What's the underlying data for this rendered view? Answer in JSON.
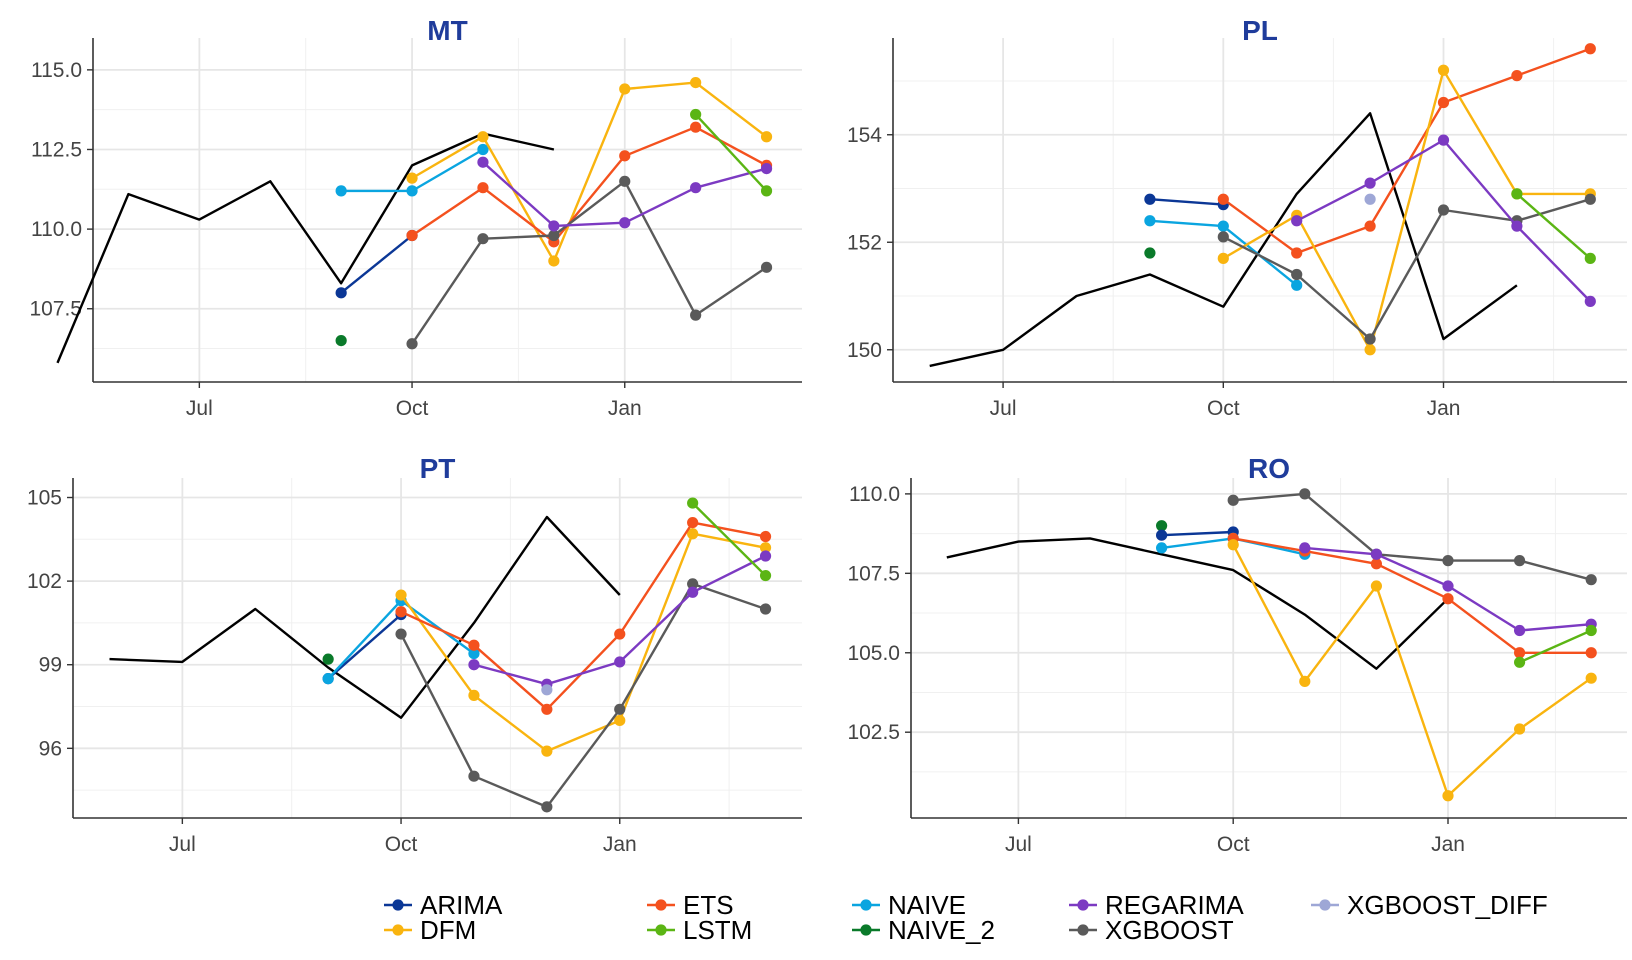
{
  "colors": {
    "actual": "#000000",
    "ARIMA": "#0b3796",
    "ETS": "#f4511e",
    "NAIVE": "#0aa5e0",
    "REGARIMA": "#7c3ac2",
    "XGBOOST_DIFF": "#9ea7d6",
    "DFM": "#f9b40f",
    "LSTM": "#5bb514",
    "NAIVE_2": "#0a7a2a",
    "XGBOOST": "#5a5a5a",
    "title": "#1f3c9b",
    "grid": "#e6e6e6"
  },
  "chart_data": [
    {
      "type": "line",
      "title": "MT",
      "x_ticks": [
        {
          "label": "Jul",
          "month": 1
        },
        {
          "label": "Oct",
          "month": 4
        },
        {
          "label": "Jan",
          "month": 7
        }
      ],
      "xlim": [
        -0.5,
        9.5
      ],
      "ylim": [
        105.2,
        116.0
      ],
      "y_ticks": [
        115.0,
        112.5,
        110.0,
        107.5
      ],
      "y_tick_labels": [
        "115.0",
        "112.5",
        "110.0",
        "107.5"
      ],
      "actual": [
        [
          -1,
          105.8
        ],
        [
          0,
          111.1
        ],
        [
          1,
          110.3
        ],
        [
          2,
          111.5
        ],
        [
          3,
          108.3
        ],
        [
          4,
          112.0
        ],
        [
          5,
          113.0
        ],
        [
          6,
          112.5
        ]
      ],
      "series": [
        {
          "name": "ARIMA",
          "values": [
            [
              3,
              108.0
            ],
            [
              4,
              109.8
            ]
          ]
        },
        {
          "name": "NAIVE_2",
          "values": [
            [
              3,
              106.5
            ]
          ]
        },
        {
          "name": "NAIVE",
          "values": [
            [
              3,
              111.2
            ],
            [
              4,
              111.2
            ],
            [
              5,
              112.5
            ]
          ]
        },
        {
          "name": "DFM",
          "values": [
            [
              4,
              111.6
            ],
            [
              5,
              112.9
            ],
            [
              6,
              109.0
            ],
            [
              7,
              114.4
            ],
            [
              8,
              114.6
            ],
            [
              9,
              112.9
            ]
          ]
        },
        {
          "name": "ETS",
          "values": [
            [
              4,
              109.8
            ],
            [
              5,
              111.3
            ],
            [
              6,
              109.6
            ],
            [
              7,
              112.3
            ],
            [
              8,
              113.2
            ],
            [
              9,
              112.0
            ]
          ]
        },
        {
          "name": "XGBOOST",
          "values": [
            [
              4,
              106.4
            ],
            [
              5,
              109.7
            ],
            [
              6,
              109.8
            ],
            [
              7,
              111.5
            ],
            [
              8,
              107.3
            ],
            [
              9,
              108.8
            ]
          ]
        },
        {
          "name": "REGARIMA",
          "values": [
            [
              5,
              112.1
            ],
            [
              6,
              110.1
            ],
            [
              7,
              110.2
            ],
            [
              8,
              111.3
            ],
            [
              9,
              111.9
            ]
          ]
        },
        {
          "name": "LSTM",
          "values": [
            [
              8,
              113.6
            ],
            [
              9,
              111.2
            ]
          ]
        }
      ]
    },
    {
      "type": "line",
      "title": "PL",
      "x_ticks": [
        {
          "label": "Jul",
          "month": 1
        },
        {
          "label": "Oct",
          "month": 4
        },
        {
          "label": "Jan",
          "month": 7
        }
      ],
      "xlim": [
        -0.5,
        9.5
      ],
      "ylim": [
        149.4,
        155.8
      ],
      "y_ticks": [
        154,
        152,
        150
      ],
      "y_tick_labels": [
        "154",
        "152",
        "150"
      ],
      "actual": [
        [
          0,
          149.7
        ],
        [
          1,
          150.0
        ],
        [
          2,
          151.0
        ],
        [
          3,
          151.4
        ],
        [
          4,
          150.8
        ],
        [
          5,
          152.9
        ],
        [
          6,
          154.4
        ],
        [
          7,
          150.2
        ],
        [
          8,
          151.2
        ]
      ],
      "series": [
        {
          "name": "ARIMA",
          "values": [
            [
              3,
              152.8
            ],
            [
              4,
              152.7
            ]
          ]
        },
        {
          "name": "NAIVE_2",
          "values": [
            [
              3,
              151.8
            ]
          ]
        },
        {
          "name": "NAIVE",
          "values": [
            [
              3,
              152.4
            ],
            [
              4,
              152.3
            ],
            [
              5,
              151.2
            ]
          ]
        },
        {
          "name": "ETS",
          "values": [
            [
              4,
              152.8
            ],
            [
              5,
              151.8
            ],
            [
              6,
              152.3
            ],
            [
              7,
              154.6
            ],
            [
              8,
              155.1
            ],
            [
              9,
              155.6
            ]
          ]
        },
        {
          "name": "DFM",
          "values": [
            [
              4,
              151.7
            ],
            [
              5,
              152.5
            ],
            [
              6,
              150.0
            ],
            [
              7,
              155.2
            ],
            [
              8,
              152.9
            ],
            [
              9,
              152.9
            ]
          ]
        },
        {
          "name": "XGBOOST",
          "values": [
            [
              4,
              152.1
            ],
            [
              5,
              151.4
            ],
            [
              6,
              150.2
            ],
            [
              7,
              152.6
            ],
            [
              8,
              152.4
            ],
            [
              9,
              152.8
            ]
          ]
        },
        {
          "name": "REGARIMA",
          "values": [
            [
              5,
              152.4
            ],
            [
              6,
              153.1
            ],
            [
              7,
              153.9
            ],
            [
              8,
              152.3
            ],
            [
              9,
              150.9
            ]
          ]
        },
        {
          "name": "XGBOOST_DIFF",
          "values": [
            [
              6,
              152.8
            ]
          ]
        },
        {
          "name": "LSTM",
          "values": [
            [
              8,
              152.9
            ],
            [
              9,
              151.7
            ]
          ]
        }
      ]
    },
    {
      "type": "line",
      "title": "PT",
      "x_ticks": [
        {
          "label": "Jul",
          "month": 1
        },
        {
          "label": "Oct",
          "month": 4
        },
        {
          "label": "Jan",
          "month": 7
        }
      ],
      "xlim": [
        -0.5,
        9.5
      ],
      "ylim": [
        93.5,
        105.7
      ],
      "y_ticks": [
        105,
        102,
        99,
        96
      ],
      "y_tick_labels": [
        "105",
        "102",
        "99",
        "96"
      ],
      "actual": [
        [
          0,
          99.2
        ],
        [
          1,
          99.1
        ],
        [
          2,
          101.0
        ],
        [
          3,
          98.9
        ],
        [
          4,
          97.1
        ],
        [
          5,
          100.5
        ],
        [
          6,
          104.3
        ],
        [
          7,
          101.5
        ]
      ],
      "series": [
        {
          "name": "NAIVE_2",
          "values": [
            [
              3,
              99.2
            ]
          ]
        },
        {
          "name": "ARIMA",
          "values": [
            [
              3,
              98.5
            ],
            [
              4,
              100.8
            ]
          ]
        },
        {
          "name": "NAIVE",
          "values": [
            [
              3,
              98.5
            ],
            [
              4,
              101.3
            ],
            [
              5,
              99.4
            ]
          ]
        },
        {
          "name": "DFM",
          "values": [
            [
              4,
              101.5
            ],
            [
              5,
              97.9
            ],
            [
              6,
              95.9
            ],
            [
              7,
              97.0
            ],
            [
              8,
              103.7
            ],
            [
              9,
              103.2
            ]
          ]
        },
        {
          "name": "ETS",
          "values": [
            [
              4,
              100.9
            ],
            [
              5,
              99.7
            ],
            [
              6,
              97.4
            ],
            [
              7,
              100.1
            ],
            [
              8,
              104.1
            ],
            [
              9,
              103.6
            ]
          ]
        },
        {
          "name": "XGBOOST",
          "values": [
            [
              4,
              100.1
            ],
            [
              5,
              95.0
            ],
            [
              6,
              93.9
            ],
            [
              7,
              97.4
            ],
            [
              8,
              101.9
            ],
            [
              9,
              101.0
            ]
          ]
        },
        {
          "name": "REGARIMA",
          "values": [
            [
              5,
              99.0
            ],
            [
              6,
              98.3
            ],
            [
              7,
              99.1
            ],
            [
              8,
              101.6
            ],
            [
              9,
              102.9
            ]
          ]
        },
        {
          "name": "XGBOOST_DIFF",
          "values": [
            [
              6,
              98.1
            ]
          ]
        },
        {
          "name": "LSTM",
          "values": [
            [
              8,
              104.8
            ],
            [
              9,
              102.2
            ]
          ]
        }
      ]
    },
    {
      "type": "line",
      "title": "RO",
      "x_ticks": [
        {
          "label": "Jul",
          "month": 1
        },
        {
          "label": "Oct",
          "month": 4
        },
        {
          "label": "Jan",
          "month": 7
        }
      ],
      "xlim": [
        -0.5,
        9.5
      ],
      "ylim": [
        99.8,
        110.5
      ],
      "y_ticks": [
        110.0,
        107.5,
        105.0,
        102.5
      ],
      "y_tick_labels": [
        "110.0",
        "107.5",
        "105.0",
        "102.5"
      ],
      "actual": [
        [
          0,
          108.0
        ],
        [
          1,
          108.5
        ],
        [
          2,
          108.6
        ],
        [
          3,
          108.1
        ],
        [
          4,
          107.6
        ],
        [
          5,
          106.2
        ],
        [
          6,
          104.5
        ],
        [
          7,
          106.7
        ]
      ],
      "series": [
        {
          "name": "NAIVE_2",
          "values": [
            [
              3,
              109.0
            ]
          ]
        },
        {
          "name": "ARIMA",
          "values": [
            [
              3,
              108.7
            ],
            [
              4,
              108.8
            ]
          ]
        },
        {
          "name": "NAIVE",
          "values": [
            [
              3,
              108.3
            ],
            [
              4,
              108.6
            ],
            [
              5,
              108.1
            ]
          ]
        },
        {
          "name": "XGBOOST",
          "values": [
            [
              4,
              109.8
            ],
            [
              5,
              110.0
            ],
            [
              6,
              108.1
            ],
            [
              7,
              107.9
            ],
            [
              8,
              107.9
            ],
            [
              9,
              107.3
            ]
          ]
        },
        {
          "name": "ETS",
          "values": [
            [
              4,
              108.6
            ],
            [
              5,
              108.2
            ],
            [
              6,
              107.8
            ],
            [
              7,
              106.7
            ],
            [
              8,
              105.0
            ],
            [
              9,
              105.0
            ]
          ]
        },
        {
          "name": "DFM",
          "values": [
            [
              4,
              108.4
            ],
            [
              5,
              104.1
            ],
            [
              6,
              107.1
            ],
            [
              7,
              100.5
            ],
            [
              8,
              102.6
            ],
            [
              9,
              104.2
            ]
          ]
        },
        {
          "name": "REGARIMA",
          "values": [
            [
              5,
              108.3
            ],
            [
              6,
              108.1
            ],
            [
              7,
              107.1
            ],
            [
              8,
              105.7
            ],
            [
              9,
              105.9
            ]
          ]
        },
        {
          "name": "LSTM",
          "values": [
            [
              8,
              104.7
            ],
            [
              9,
              105.7
            ]
          ]
        }
      ]
    }
  ],
  "legend": {
    "placement": "bottom",
    "items": [
      "ARIMA",
      "DFM",
      "ETS",
      "LSTM",
      "NAIVE",
      "NAIVE_2",
      "REGARIMA",
      "XGBOOST",
      "XGBOOST_DIFF"
    ]
  }
}
